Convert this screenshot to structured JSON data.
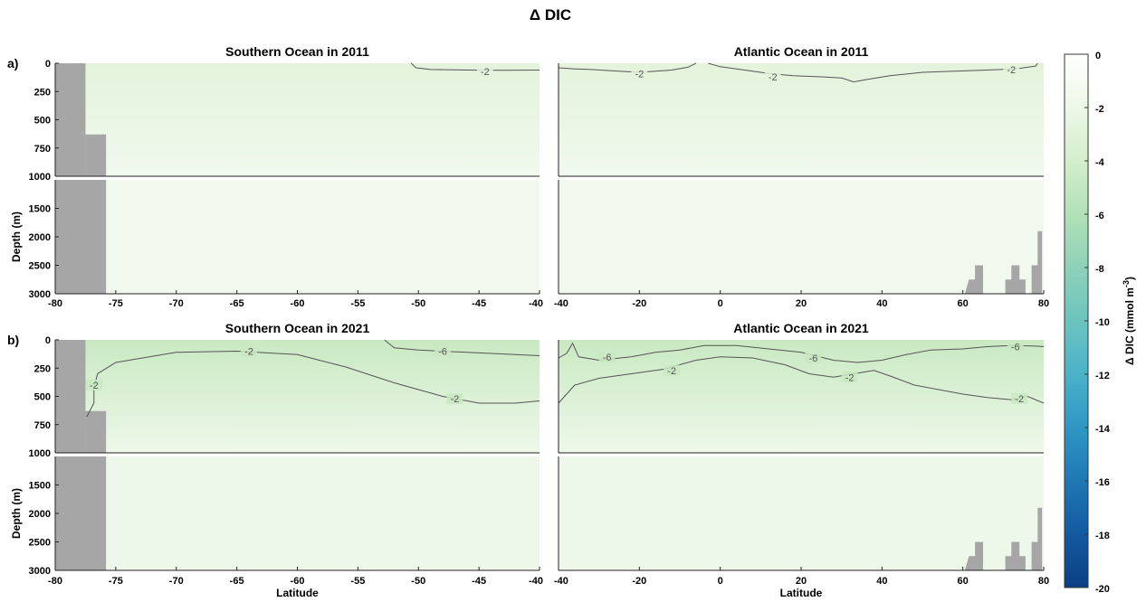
{
  "chart_data": {
    "type": "heatmap",
    "title": "Δ DIC",
    "colorbar": {
      "label": "Δ DIC",
      "units_text": "(mmol m",
      "units_exponent": "-3",
      "units_close": ")",
      "range": [
        -20,
        0
      ],
      "ticks": [
        0,
        -2,
        -4,
        -6,
        -8,
        -10,
        -12,
        -14,
        -16,
        -18,
        -20
      ],
      "colors": [
        "#ffffff",
        "#edf8e7",
        "#d3eecb",
        "#b2e1b6",
        "#8ed1b9",
        "#6cc4bf",
        "#4bb2c9",
        "#2f97c4",
        "#1f78b4",
        "#135aa0",
        "#0b3f84"
      ]
    },
    "ylabel": "Depth (m)",
    "xlabel": "Latitude",
    "ylim": [
      3000,
      0
    ],
    "y_upper": [
      0,
      1000
    ],
    "y_lower": [
      1000,
      3000
    ],
    "y_ticks_upper": [
      0,
      250,
      500,
      750,
      1000
    ],
    "y_ticks_lower": [
      1500,
      2000,
      2500,
      3000
    ],
    "rows": [
      {
        "label": "a)",
        "panels": [
          {
            "title": "Southern Ocean in 2011",
            "xlim": [
              -80,
              -40
            ],
            "xticks": [
              -80,
              -75,
              -70,
              -65,
              -60,
              -55,
              -50,
              -45,
              -40
            ],
            "surface_color": "#e4f3dc",
            "deep_color": "#f1f9ee",
            "bathymetry": [
              [
                -80,
                0
              ],
              [
                -77.5,
                0
              ],
              [
                -77.5,
                630
              ],
              [
                -75.8,
                630
              ],
              [
                -75.8,
                3000
              ]
            ],
            "contours": [
              {
                "level": "-2",
                "label_at": [
                  -44.5,
                  70
                ],
                "points": [
                  [
                    -50.6,
                    0
                  ],
                  [
                    -50.2,
                    40
                  ],
                  [
                    -49,
                    55
                  ],
                  [
                    -46,
                    60
                  ],
                  [
                    -43,
                    62
                  ],
                  [
                    -40,
                    60
                  ]
                ]
              }
            ]
          },
          {
            "title": "Atlantic Ocean in 2011",
            "xlim": [
              -40,
              80
            ],
            "xticks": [
              -40,
              -20,
              0,
              20,
              40,
              60,
              80
            ],
            "surface_color": "#e4f3dc",
            "deep_color": "#f1f9ee",
            "bathymetry": [
              [
                60.5,
                3000
              ],
              [
                61.5,
                2750
              ],
              [
                63,
                2750
              ],
              [
                63,
                2500
              ],
              [
                65,
                2500
              ],
              [
                65,
                3000
              ],
              [
                70.5,
                3000
              ],
              [
                70.5,
                2750
              ],
              [
                72,
                2750
              ],
              [
                72,
                2500
              ],
              [
                74,
                2500
              ],
              [
                74,
                2750
              ],
              [
                75.5,
                2750
              ],
              [
                75.5,
                3000
              ],
              [
                77,
                3000
              ],
              [
                77,
                2500
              ],
              [
                78.5,
                2500
              ],
              [
                78.5,
                1900
              ],
              [
                79.6,
                1900
              ],
              [
                79.6,
                3000
              ]
            ],
            "contours": [
              {
                "level": "-2",
                "label_at": [
                  -20,
                  90
                ],
                "points": [
                  [
                    -40,
                    40
                  ],
                  [
                    -36,
                    50
                  ],
                  [
                    -32,
                    55
                  ],
                  [
                    -25,
                    70
                  ],
                  [
                    -20,
                    80
                  ],
                  [
                    -12,
                    60
                  ],
                  [
                    -8,
                    35
                  ],
                  [
                    -6,
                    0
                  ]
                ]
              },
              {
                "level": "-2",
                "label_at": [
                  13,
                  120
                ],
                "points": [
                  [
                    -3,
                    0
                  ],
                  [
                    0,
                    30
                  ],
                  [
                    6,
                    60
                  ],
                  [
                    12,
                    90
                  ],
                  [
                    18,
                    110
                  ],
                  [
                    25,
                    120
                  ],
                  [
                    30,
                    130
                  ],
                  [
                    33,
                    165
                  ],
                  [
                    36,
                    145
                  ],
                  [
                    42,
                    110
                  ],
                  [
                    50,
                    80
                  ],
                  [
                    58,
                    70
                  ],
                  [
                    66,
                    60
                  ],
                  [
                    73,
                    50
                  ],
                  [
                    78,
                    25
                  ],
                  [
                    78.5,
                    0
                  ]
                ]
              },
              {
                "level": "-2",
                "label_at": [
                  72,
                  55
                ],
                "points": []
              }
            ]
          }
        ]
      },
      {
        "label": "b)",
        "panels": [
          {
            "title": "Southern Ocean in 2021",
            "xlim": [
              -80,
              -40
            ],
            "xticks": [
              -80,
              -75,
              -70,
              -65,
              -60,
              -55,
              -50,
              -45,
              -40
            ],
            "surface_color": "#c9e9c2",
            "deep_color": "#eef8ea",
            "bathymetry": [
              [
                -80,
                0
              ],
              [
                -77.5,
                0
              ],
              [
                -77.5,
                630
              ],
              [
                -75.8,
                630
              ],
              [
                -75.8,
                3000
              ]
            ],
            "contours": [
              {
                "level": "-2",
                "label_at": [
                  -76.8,
                  400
                ],
                "points": [
                  [
                    -77.4,
                    680
                  ],
                  [
                    -76.8,
                    560
                  ],
                  [
                    -76.8,
                    420
                  ],
                  [
                    -76.5,
                    300
                  ],
                  [
                    -75,
                    200
                  ],
                  [
                    -70,
                    110
                  ],
                  [
                    -65,
                    100
                  ],
                  [
                    -60,
                    130
                  ],
                  [
                    -56,
                    240
                  ],
                  [
                    -52,
                    380
                  ],
                  [
                    -48,
                    500
                  ],
                  [
                    -45,
                    560
                  ],
                  [
                    -42,
                    560
                  ],
                  [
                    -40,
                    540
                  ]
                ]
              },
              {
                "level": "-2",
                "label_at": [
                  -64,
                  100
                ],
                "points": []
              },
              {
                "level": "-2",
                "label_at": [
                  -47,
                  520
                ],
                "points": []
              },
              {
                "level": "-6",
                "label_at": [
                  -48,
                  100
                ],
                "points": [
                  [
                    -52.8,
                    0
                  ],
                  [
                    -52,
                    70
                  ],
                  [
                    -50,
                    90
                  ],
                  [
                    -46,
                    110
                  ],
                  [
                    -42,
                    130
                  ],
                  [
                    -40,
                    140
                  ]
                ]
              }
            ]
          },
          {
            "title": "Atlantic Ocean in 2021",
            "xlim": [
              -40,
              80
            ],
            "xticks": [
              -40,
              -20,
              0,
              20,
              40,
              60,
              80
            ],
            "surface_color": "#c9e9c2",
            "deep_color": "#eef8ea",
            "bathymetry": [
              [
                60.5,
                3000
              ],
              [
                61.5,
                2750
              ],
              [
                63,
                2750
              ],
              [
                63,
                2500
              ],
              [
                65,
                2500
              ],
              [
                65,
                3000
              ],
              [
                70.5,
                3000
              ],
              [
                70.5,
                2750
              ],
              [
                72,
                2750
              ],
              [
                72,
                2500
              ],
              [
                74,
                2500
              ],
              [
                74,
                2750
              ],
              [
                75.5,
                2750
              ],
              [
                75.5,
                3000
              ],
              [
                77,
                3000
              ],
              [
                77,
                2500
              ],
              [
                78.5,
                2500
              ],
              [
                78.5,
                1900
              ],
              [
                79.6,
                1900
              ],
              [
                79.6,
                3000
              ]
            ],
            "contours": [
              {
                "level": "-6",
                "label_at": [
                  -28,
                  150
                ],
                "points": [
                  [
                    -40,
                    160
                  ],
                  [
                    -38,
                    120
                  ],
                  [
                    -36.5,
                    30
                  ],
                  [
                    -35,
                    150
                  ],
                  [
                    -30,
                    180
                  ],
                  [
                    -22,
                    150
                  ],
                  [
                    -16,
                    110
                  ],
                  [
                    -10,
                    90
                  ],
                  [
                    -4,
                    50
                  ],
                  [
                    4,
                    50
                  ],
                  [
                    12,
                    80
                  ],
                  [
                    20,
                    110
                  ],
                  [
                    28,
                    180
                  ],
                  [
                    34,
                    200
                  ],
                  [
                    40,
                    180
                  ],
                  [
                    46,
                    130
                  ],
                  [
                    52,
                    90
                  ],
                  [
                    60,
                    80
                  ],
                  [
                    66,
                    60
                  ],
                  [
                    72,
                    50
                  ],
                  [
                    78,
                    55
                  ],
                  [
                    80,
                    60
                  ]
                ]
              },
              {
                "level": "-6",
                "label_at": [
                  23,
                  160
                ],
                "points": []
              },
              {
                "level": "-6",
                "label_at": [
                  73,
                  60
                ],
                "points": []
              },
              {
                "level": "-2",
                "label_at": [
                  -12,
                  270
                ],
                "points": [
                  [
                    -40,
                    560
                  ],
                  [
                    -36,
                    400
                  ],
                  [
                    -30,
                    340
                  ],
                  [
                    -22,
                    300
                  ],
                  [
                    -14,
                    260
                  ],
                  [
                    -6,
                    180
                  ],
                  [
                    0,
                    150
                  ],
                  [
                    8,
                    160
                  ],
                  [
                    16,
                    220
                  ],
                  [
                    22,
                    300
                  ],
                  [
                    28,
                    330
                  ],
                  [
                    33,
                    300
                  ],
                  [
                    38,
                    270
                  ],
                  [
                    42,
                    320
                  ],
                  [
                    48,
                    400
                  ],
                  [
                    54,
                    440
                  ],
                  [
                    60,
                    480
                  ],
                  [
                    66,
                    510
                  ],
                  [
                    72,
                    530
                  ],
                  [
                    76,
                    500
                  ],
                  [
                    80,
                    560
                  ]
                ]
              },
              {
                "level": "-2",
                "label_at": [
                  32,
                  330
                ],
                "points": []
              },
              {
                "level": "-2",
                "label_at": [
                  74,
                  520
                ],
                "points": []
              }
            ]
          }
        ]
      }
    ]
  }
}
